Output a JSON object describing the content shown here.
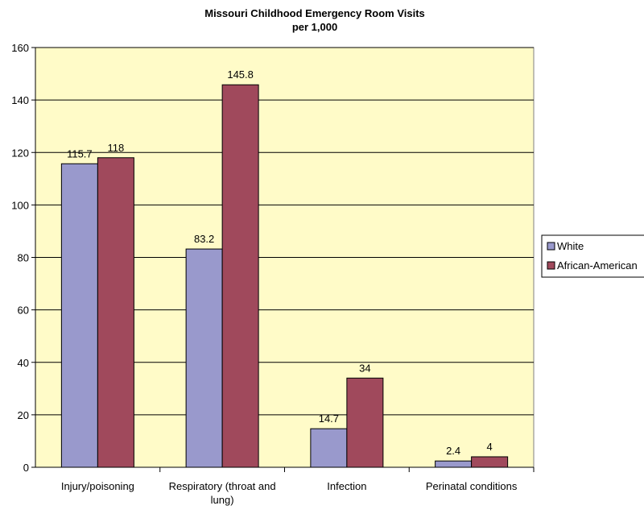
{
  "chart_data": {
    "type": "bar",
    "title": "Missouri Childhood Emergency Room Visits",
    "subtitle": "per 1,000",
    "categories": [
      [
        "Injury/poisoning"
      ],
      [
        "Respiratory (throat and",
        "lung)"
      ],
      [
        "Infection"
      ],
      [
        "Perinatal conditions"
      ]
    ],
    "series": [
      {
        "name": "White",
        "color": "#9999cc",
        "values": [
          115.7,
          83.2,
          14.7,
          2.4
        ],
        "labels": [
          "115.7",
          "83.2",
          "14.7",
          "2.4"
        ]
      },
      {
        "name": "African-American",
        "color": "#a0495c",
        "values": [
          118,
          145.8,
          34,
          4
        ],
        "labels": [
          "118",
          "145.8",
          "34",
          "4"
        ]
      }
    ],
    "ylim": [
      0,
      160
    ],
    "yticks": [
      0,
      20,
      40,
      60,
      80,
      100,
      120,
      140,
      160
    ],
    "plot_background": "#fffbc8",
    "grid": true,
    "legend_position": "right"
  }
}
